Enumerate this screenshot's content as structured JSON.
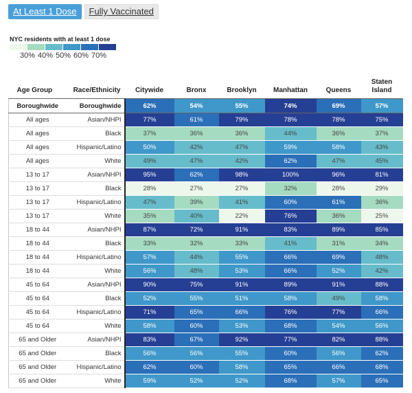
{
  "tabs": [
    {
      "label": "At Least 1 Dose",
      "active": true
    },
    {
      "label": "Fully Vaccinated",
      "active": false
    }
  ],
  "legend": {
    "title": "NYC residents with at least 1 dose",
    "labels": [
      "30%",
      "40%",
      "50%",
      "60%",
      "70%"
    ],
    "colors": [
      "#eef7ec",
      "#a5dbc0",
      "#67bccb",
      "#3f98c9",
      "#2b6fb8",
      "#253f94"
    ]
  },
  "columns": [
    "Age Group",
    "Race/Ethnicity",
    "Citywide",
    "Bronx",
    "Brooklyn",
    "Manhattan",
    "Queens",
    "Staten Island"
  ],
  "rows": [
    {
      "age": "Boroughwide",
      "race": "Boroughwide",
      "values": [
        "62%",
        "54%",
        "55%",
        "74%",
        "69%",
        "57%"
      ],
      "boroughwide": true
    },
    {
      "age": "All ages",
      "race": "Asian/NHPI",
      "values": [
        "77%",
        "61%",
        "79%",
        "78%",
        "78%",
        "75%"
      ]
    },
    {
      "age": "All ages",
      "race": "Black",
      "values": [
        "37%",
        "36%",
        "36%",
        "44%",
        "36%",
        "37%"
      ]
    },
    {
      "age": "All ages",
      "race": "Hispanic/Latino",
      "values": [
        "50%",
        "42%",
        "47%",
        "59%",
        "58%",
        "43%"
      ]
    },
    {
      "age": "All ages",
      "race": "White",
      "values": [
        "49%",
        "47%",
        "42%",
        "62%",
        "47%",
        "45%"
      ]
    },
    {
      "age": "13 to 17",
      "race": "Asian/NHPI",
      "values": [
        "95%",
        "62%",
        "98%",
        "100%",
        "96%",
        "81%"
      ]
    },
    {
      "age": "13 to 17",
      "race": "Black",
      "values": [
        "28%",
        "27%",
        "27%",
        "32%",
        "28%",
        "29%"
      ]
    },
    {
      "age": "13 to 17",
      "race": "Hispanic/Latino",
      "values": [
        "47%",
        "39%",
        "41%",
        "60%",
        "61%",
        "36%"
      ]
    },
    {
      "age": "13 to 17",
      "race": "White",
      "values": [
        "35%",
        "40%",
        "22%",
        "76%",
        "36%",
        "25%"
      ]
    },
    {
      "age": "18 to 44",
      "race": "Asian/NHPI",
      "values": [
        "87%",
        "72%",
        "91%",
        "83%",
        "89%",
        "85%"
      ]
    },
    {
      "age": "18 to 44",
      "race": "Black",
      "values": [
        "33%",
        "32%",
        "33%",
        "41%",
        "31%",
        "34%"
      ]
    },
    {
      "age": "18 to 44",
      "race": "Hispanic/Latino",
      "values": [
        "57%",
        "44%",
        "55%",
        "66%",
        "69%",
        "48%"
      ]
    },
    {
      "age": "18 to 44",
      "race": "White",
      "values": [
        "56%",
        "48%",
        "53%",
        "66%",
        "52%",
        "42%"
      ]
    },
    {
      "age": "45 to 64",
      "race": "Asian/NHPI",
      "values": [
        "90%",
        "75%",
        "91%",
        "89%",
        "91%",
        "88%"
      ]
    },
    {
      "age": "45 to 64",
      "race": "Black",
      "values": [
        "52%",
        "55%",
        "51%",
        "58%",
        "49%",
        "58%"
      ]
    },
    {
      "age": "45 to 64",
      "race": "Hispanic/Latino",
      "values": [
        "71%",
        "65%",
        "66%",
        "76%",
        "77%",
        "66%"
      ]
    },
    {
      "age": "45 to 64",
      "race": "White",
      "values": [
        "58%",
        "60%",
        "53%",
        "68%",
        "54%",
        "56%"
      ]
    },
    {
      "age": "65 and Older",
      "race": "Asian/NHPI",
      "values": [
        "83%",
        "67%",
        "92%",
        "77%",
        "82%",
        "88%"
      ]
    },
    {
      "age": "65 and Older",
      "race": "Black",
      "values": [
        "56%",
        "56%",
        "55%",
        "60%",
        "56%",
        "62%"
      ]
    },
    {
      "age": "65 and Older",
      "race": "Hispanic/Latino",
      "values": [
        "62%",
        "60%",
        "58%",
        "65%",
        "66%",
        "68%"
      ]
    },
    {
      "age": "65 and Older",
      "race": "White",
      "values": [
        "59%",
        "52%",
        "52%",
        "68%",
        "57%",
        "65%"
      ]
    }
  ]
}
